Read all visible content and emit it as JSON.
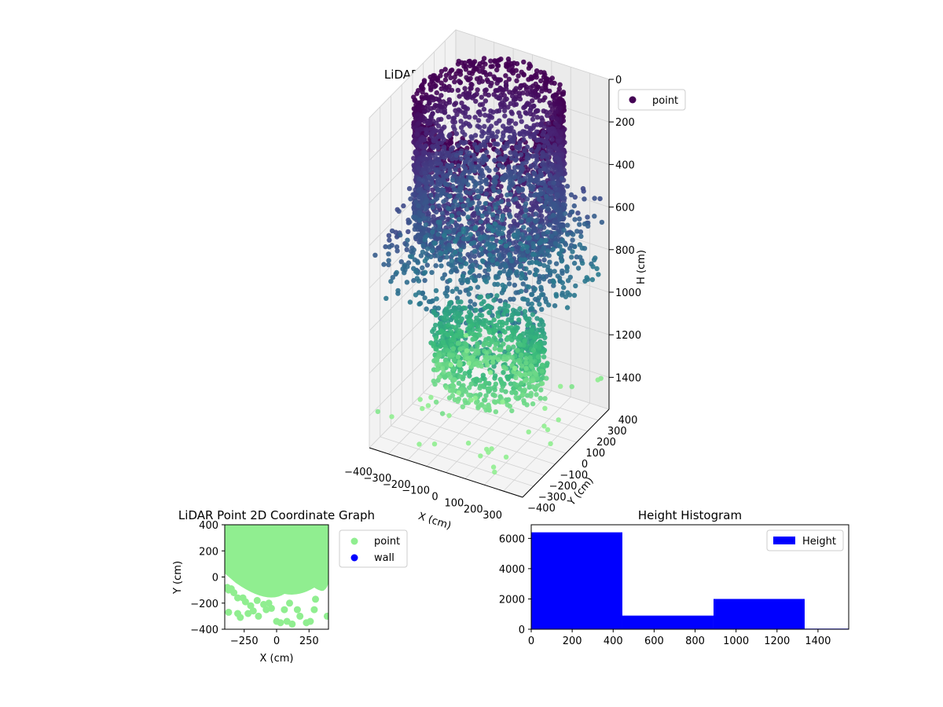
{
  "chart_data": [
    {
      "type": "scatter",
      "projection": "3d",
      "title": "LiDAR Point 3D Coordinate Graph",
      "xlabel": "X (cm)",
      "ylabel": "Y (cm)",
      "zlabel": "H (cm)",
      "x_ticks": [
        "−400",
        "−300",
        "−200",
        "−100",
        "0",
        "100",
        "200",
        "300"
      ],
      "y_ticks": [
        "−400",
        "−300",
        "−200",
        "−100",
        "0",
        "100",
        "200",
        "300",
        "400"
      ],
      "z_ticks": [
        "0",
        "200",
        "400",
        "600",
        "800",
        "1000",
        "1200",
        "1400"
      ],
      "xlim": [
        -400,
        400
      ],
      "ylim": [
        -400,
        400
      ],
      "zlim": [
        1550,
        0
      ],
      "grid": true,
      "colormap": "viridis",
      "color_range": [
        "#440154",
        "#90ee90"
      ],
      "legend": {
        "entries": [
          "point"
        ],
        "placement": "top-right"
      },
      "series": [
        {
          "name": "point",
          "color": "#440154",
          "groups": [
            {
              "shape": "cylinder-shell",
              "radius": 330,
              "h_from": 0,
              "h_to": 600,
              "count": 6400
            },
            {
              "shape": "scattered",
              "h_from": 500,
              "h_to": 900,
              "count": 900
            },
            {
              "shape": "ring-floor",
              "radius": 280,
              "h_from": 1050,
              "h_to": 1350,
              "count": 2000
            },
            {
              "shape": "scattered",
              "h_from": 1350,
              "h_to": 1550,
              "count": 40
            }
          ]
        }
      ]
    },
    {
      "type": "scatter",
      "title": "LiDAR Point 2D Coordinate Graph",
      "xlabel": "X (cm)",
      "ylabel": "Y (cm)",
      "xlim": [
        -400,
        400
      ],
      "ylim": [
        -400,
        400
      ],
      "x_ticks": [
        "−250",
        "0",
        "250"
      ],
      "y_ticks": [
        "400",
        "200",
        "0",
        "−200",
        "−400"
      ],
      "legend": {
        "entries": [
          "point",
          "wall"
        ],
        "placement": "right"
      },
      "series": [
        {
          "name": "point",
          "color": "#90ee90"
        },
        {
          "name": "wall",
          "color": "#0000ff"
        }
      ],
      "scattered_points": [
        [
          -380,
          -80
        ],
        [
          -370,
          -100
        ],
        [
          -350,
          -90
        ],
        [
          -330,
          -120
        ],
        [
          -300,
          -160
        ],
        [
          -370,
          -270
        ],
        [
          -300,
          -280
        ],
        [
          -280,
          -310
        ],
        [
          -260,
          -160
        ],
        [
          -240,
          -190
        ],
        [
          -220,
          -280
        ],
        [
          -180,
          -260
        ],
        [
          -140,
          -300
        ],
        [
          -150,
          -180
        ],
        [
          -100,
          -210
        ],
        [
          -80,
          -250
        ],
        [
          -40,
          -240
        ],
        [
          0,
          -340
        ],
        [
          30,
          -350
        ],
        [
          60,
          -250
        ],
        [
          80,
          -340
        ],
        [
          120,
          -360
        ],
        [
          160,
          -250
        ],
        [
          180,
          -300
        ],
        [
          230,
          -350
        ],
        [
          260,
          -340
        ],
        [
          290,
          -250
        ],
        [
          300,
          -170
        ],
        [
          350,
          -80
        ],
        [
          380,
          0
        ],
        [
          390,
          -300
        ],
        [
          -200,
          -220
        ],
        [
          -60,
          -200
        ],
        [
          100,
          -200
        ]
      ]
    },
    {
      "type": "bar",
      "subtype": "histogram",
      "title": "Height Histogram",
      "xlabel": "",
      "ylabel": "",
      "bin_edges": [
        0,
        445,
        890,
        1335,
        1550
      ],
      "values": [
        6400,
        900,
        2000,
        40
      ],
      "xlim": [
        0,
        1550
      ],
      "ylim": [
        0,
        6900
      ],
      "x_ticks": [
        "0",
        "200",
        "400",
        "600",
        "800",
        "1000",
        "1200",
        "1400"
      ],
      "y_ticks": [
        "0",
        "2000",
        "4000",
        "6000"
      ],
      "legend": {
        "entries": [
          "Height"
        ],
        "placement": "top-right"
      },
      "series": [
        {
          "name": "Height",
          "color": "#0000ff"
        }
      ]
    }
  ]
}
